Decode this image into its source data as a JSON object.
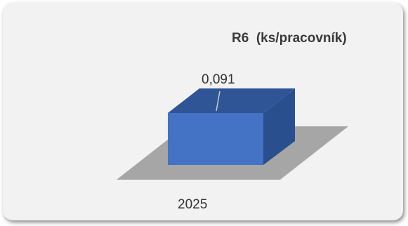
{
  "chart_data": {
    "type": "bar",
    "title": "R6  (ks/pracovník)",
    "categories": [
      "2025"
    ],
    "values": [
      0.091
    ],
    "data_labels": [
      "0,091"
    ],
    "xlabel": "",
    "ylabel": "",
    "grid": false,
    "legend": "none",
    "colors": {
      "bar_front": "#4472c4",
      "bar_top": "#2f5597",
      "bar_side": "#2a4f8f",
      "floor": "#a6a6a6",
      "background": "#f2f2f2"
    }
  }
}
